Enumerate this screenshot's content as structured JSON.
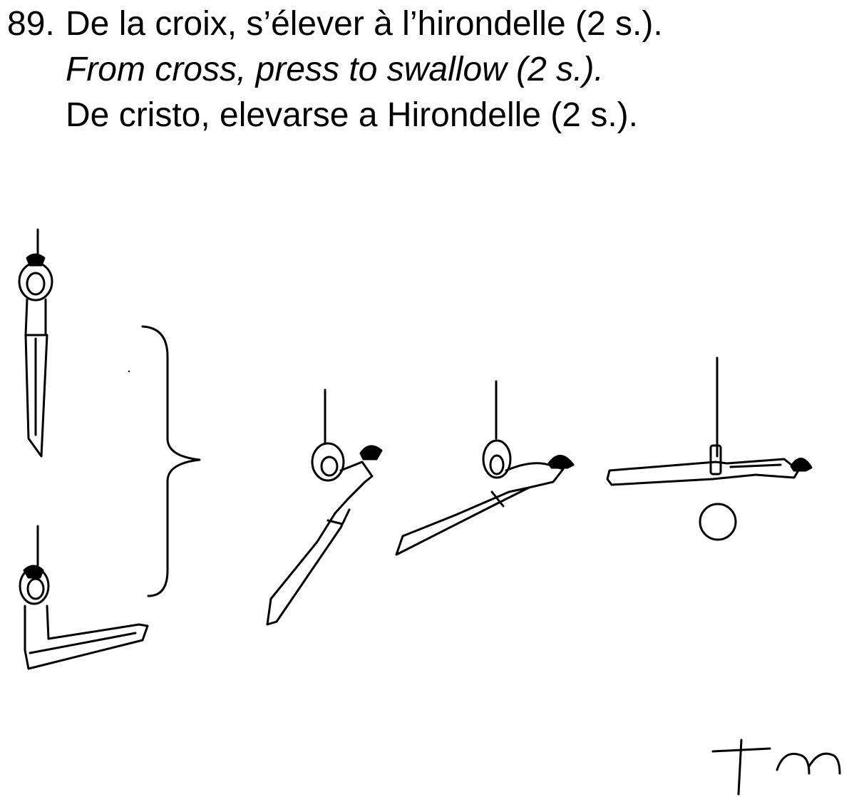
{
  "element": {
    "number": "89.",
    "title_fr": "De la croix, s’élever à l’hirondelle (2 s.).",
    "title_en": "From cross, press to swallow (2 s.).",
    "title_es": "De cristo, elevarse a Hirondelle (2 s.)."
  },
  "figures": [
    {
      "name": "cross-front-view"
    },
    {
      "name": "cross-side-view"
    },
    {
      "name": "press-phase-1"
    },
    {
      "name": "press-phase-2"
    },
    {
      "name": "swallow-position"
    }
  ],
  "signature": "tm"
}
